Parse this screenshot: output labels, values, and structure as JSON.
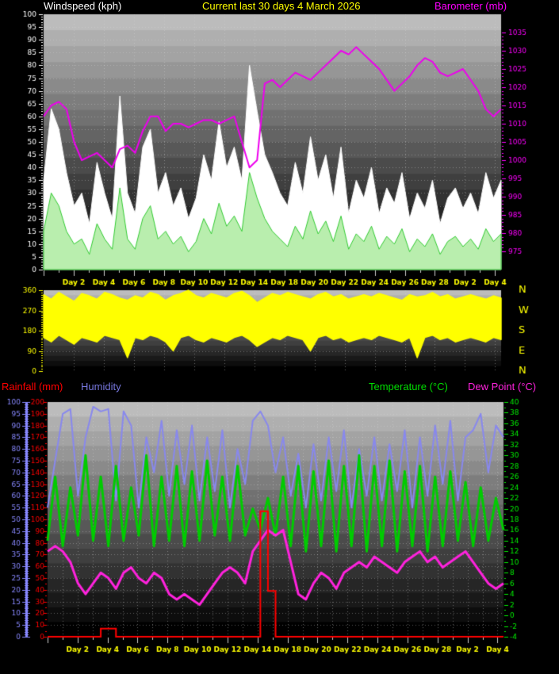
{
  "header": {
    "windspeed": "Windspeed (kph)",
    "current": "Current last 30 days 4 March 2026",
    "barometer": "Barometer (mb)"
  },
  "header2": {
    "rainfall": "Rainfall (mm)",
    "humidity": "Humidity",
    "temperature": "Temperature (°C)",
    "dew_point": "Dew Point (°C)"
  },
  "colors": {
    "windspeed_title": "#ffffff",
    "current_title": "#ffff00",
    "barometer_title": "#ff00ff",
    "rainfall_title": "#ff0000",
    "humidity_title": "#7777dd",
    "temperature_title": "#00dd00",
    "dew_point_title": "#ff22dd",
    "plot_gradient_top": "#bcbcbc",
    "plot_gradient_bottom": "#000000",
    "day_label": "#ffff00"
  },
  "x_tick_labels": [
    "Day 2",
    "Day 4",
    "Day 6",
    "Day 8",
    "Day 10",
    "Day 12",
    "Day 14",
    "Day 18",
    "Day 20",
    "Day 22",
    "Day 24",
    "Day 26",
    "Day 28",
    "Day 2",
    "Day 4"
  ],
  "chart_data": [
    {
      "id": "wind_baro",
      "type": "area",
      "title": "Windspeed (kph)",
      "right_title": "Barometer (mb)",
      "left_axis": {
        "min": 0,
        "max": 100,
        "major": 5,
        "minor": 1,
        "color": "#ffffff"
      },
      "right_axis": {
        "min": 970,
        "max": 1040,
        "tick_min": 975,
        "tick_max": 1035,
        "major": 5,
        "minor": 1,
        "color": "#ff00ff"
      },
      "series": [
        {
          "name": "wind_gust",
          "type": "area",
          "axis": "left",
          "stroke": "#ffffff",
          "fill": "#ffffff",
          "values": [
            35,
            63,
            55,
            38,
            25,
            30,
            18,
            42,
            30,
            20,
            68,
            30,
            22,
            48,
            55,
            30,
            38,
            25,
            32,
            20,
            28,
            45,
            35,
            58,
            40,
            48,
            35,
            80,
            62,
            45,
            38,
            30,
            25,
            42,
            30,
            52,
            35,
            45,
            28,
            48,
            22,
            35,
            28,
            40,
            22,
            32,
            26,
            38,
            20,
            30,
            24,
            35,
            18,
            28,
            32,
            24,
            30,
            22,
            38,
            28,
            35
          ]
        },
        {
          "name": "wind_average",
          "type": "area",
          "axis": "left",
          "stroke": "#33cc33",
          "fill": "#b9eeae",
          "values": [
            15,
            30,
            25,
            15,
            10,
            12,
            6,
            18,
            12,
            8,
            32,
            12,
            8,
            20,
            25,
            12,
            15,
            10,
            13,
            7,
            11,
            20,
            14,
            26,
            17,
            21,
            15,
            38,
            28,
            20,
            15,
            12,
            9,
            17,
            12,
            23,
            14,
            19,
            11,
            21,
            8,
            14,
            11,
            17,
            8,
            13,
            10,
            16,
            7,
            12,
            9,
            14,
            6,
            11,
            13,
            9,
            12,
            8,
            16,
            11,
            14
          ]
        },
        {
          "name": "barometer",
          "type": "line",
          "axis": "right",
          "stroke": "#ee00ee",
          "width": 2,
          "values": [
            1012,
            1015,
            1016,
            1014,
            1005,
            1000,
            1001,
            1002,
            1000,
            998,
            1003,
            1004,
            1002,
            1008,
            1012,
            1012,
            1008,
            1010,
            1010,
            1009,
            1010,
            1011,
            1011,
            1010,
            1011,
            1012,
            1005,
            998,
            1000,
            1021,
            1022,
            1020,
            1022,
            1024,
            1023,
            1022,
            1024,
            1026,
            1028,
            1030,
            1029,
            1031,
            1029,
            1027,
            1025,
            1022,
            1019,
            1021,
            1023,
            1026,
            1028,
            1027,
            1024,
            1023,
            1024,
            1025,
            1022,
            1019,
            1014,
            1012,
            1014
          ]
        }
      ]
    },
    {
      "id": "wind_direction",
      "type": "band",
      "left_axis": {
        "min": 0,
        "max": 360,
        "ticks": [
          0,
          90,
          180,
          270,
          360
        ],
        "minor": 10,
        "color": "#ffff00"
      },
      "right_labels": [
        "N",
        "W",
        "S",
        "E",
        "N"
      ],
      "series": [
        {
          "name": "direction_range",
          "type": "band",
          "color": "#ffff00",
          "min_values": [
            150,
            130,
            160,
            140,
            120,
            150,
            140,
            130,
            160,
            150,
            140,
            60,
            150,
            140,
            160,
            150,
            130,
            90,
            150,
            160,
            140,
            130,
            150,
            140,
            130,
            150,
            160,
            140,
            110,
            130,
            150,
            140,
            160,
            150,
            140,
            90,
            150,
            160,
            140,
            150,
            130,
            140,
            150,
            140,
            160,
            150,
            140,
            130,
            150,
            60,
            150,
            160,
            140,
            150,
            130,
            140,
            150,
            140,
            130,
            150,
            140
          ],
          "max_values": [
            340,
            320,
            350,
            330,
            310,
            345,
            335,
            320,
            350,
            340,
            325,
            315,
            335,
            325,
            350,
            340,
            315,
            335,
            345,
            360,
            335,
            325,
            345,
            335,
            325,
            345,
            355,
            335,
            305,
            325,
            345,
            335,
            350,
            340,
            330,
            320,
            340,
            350,
            330,
            340,
            320,
            330,
            340,
            330,
            345,
            335,
            325,
            315,
            340,
            330,
            335,
            350,
            330,
            340,
            320,
            330,
            340,
            330,
            320,
            335,
            325
          ]
        }
      ]
    },
    {
      "id": "rain_humidity_temp_dew",
      "type": "line",
      "humidity_axis": {
        "min": 0,
        "max": 100,
        "major": 5,
        "minor": 1,
        "color": "#8888ff"
      },
      "rain_axis": {
        "min": 0,
        "max": 200,
        "major": 10,
        "minor": 5,
        "color": "#ff0000"
      },
      "right_axis": {
        "min": -4,
        "max": 40,
        "major": 2,
        "minor": 1,
        "color": "#00ee00"
      },
      "series": [
        {
          "name": "humidity",
          "type": "line",
          "axis": "humidity",
          "stroke": "#8888ee",
          "width": 2,
          "values": [
            55,
            75,
            95,
            97,
            60,
            85,
            98,
            96,
            97,
            58,
            96,
            90,
            55,
            85,
            70,
            92,
            60,
            88,
            65,
            90,
            58,
            85,
            62,
            88,
            55,
            80,
            65,
            92,
            96,
            90,
            70,
            85,
            60,
            78,
            55,
            82,
            58,
            85,
            62,
            88,
            55,
            80,
            60,
            85,
            58,
            82,
            62,
            88,
            55,
            85,
            60,
            90,
            65,
            92,
            58,
            85,
            88,
            95,
            70,
            90,
            85
          ]
        },
        {
          "name": "temperature",
          "type": "line",
          "axis": "right",
          "stroke": "#00cc00",
          "width": 3,
          "values": [
            14,
            26,
            13,
            24,
            15,
            30,
            14,
            26,
            13,
            28,
            14,
            24,
            15,
            30,
            13,
            26,
            14,
            28,
            13,
            27,
            14,
            29,
            15,
            26,
            14,
            28,
            15,
            20,
            16,
            22,
            15,
            26,
            13,
            28,
            12,
            27,
            13,
            29,
            12,
            28,
            13,
            30,
            12,
            28,
            13,
            29,
            12,
            27,
            13,
            28,
            12,
            26,
            13,
            27,
            14,
            25,
            13,
            24,
            14,
            22,
            16
          ]
        },
        {
          "name": "dew_point",
          "type": "line",
          "axis": "right",
          "stroke": "#ff22dd",
          "width": 3,
          "values": [
            12,
            13,
            12,
            10,
            6,
            4,
            6,
            8,
            7,
            5,
            8,
            9,
            7,
            6,
            8,
            7,
            4,
            3,
            4,
            3,
            2,
            4,
            6,
            8,
            9,
            8,
            6,
            12,
            14,
            16,
            15,
            16,
            10,
            4,
            3,
            6,
            8,
            7,
            5,
            8,
            9,
            10,
            9,
            11,
            10,
            9,
            8,
            10,
            11,
            12,
            10,
            11,
            9,
            10,
            11,
            12,
            10,
            8,
            6,
            5,
            6
          ]
        },
        {
          "name": "rainfall",
          "type": "steps",
          "axis": "rain",
          "stroke": "#ff0000",
          "width": 2,
          "values": [
            0,
            0,
            0,
            0,
            0,
            0,
            0,
            7,
            7,
            0,
            0,
            0,
            0,
            0,
            0,
            0,
            0,
            0,
            0,
            0,
            0,
            0,
            0,
            0,
            0,
            0,
            0,
            0,
            107,
            39,
            0,
            0,
            0,
            0,
            0,
            0,
            0,
            0,
            0,
            0,
            0,
            0,
            0,
            0,
            0,
            0,
            0,
            0,
            0,
            0,
            0,
            0,
            0,
            0,
            0,
            0,
            0,
            0,
            0,
            0,
            0
          ]
        }
      ]
    }
  ]
}
